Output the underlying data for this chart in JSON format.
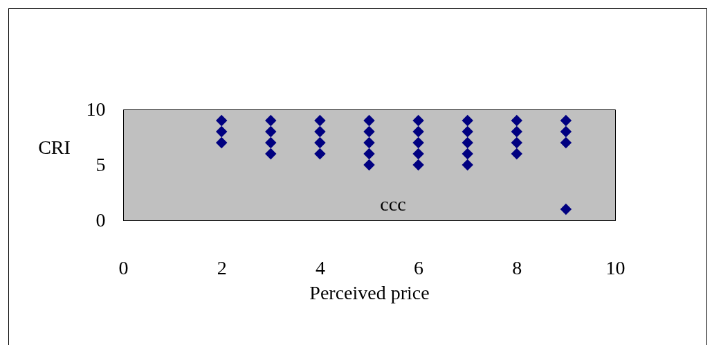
{
  "chart_data": {
    "type": "scatter",
    "xlabel": "Perceived price",
    "ylabel": "CRI",
    "marker": "diamond",
    "grid": false,
    "series": [
      {
        "color": "#000080",
        "x": [
          2,
          2,
          2,
          3,
          3,
          3,
          3,
          4,
          4,
          4,
          4,
          5,
          5,
          5,
          5,
          5,
          6,
          6,
          6,
          6,
          6,
          7,
          7,
          7,
          7,
          7,
          8,
          8,
          8,
          8,
          9,
          9,
          9,
          9
        ],
        "values": [
          7,
          8,
          9,
          6,
          7,
          8,
          9,
          6,
          7,
          8,
          9,
          5,
          6,
          7,
          8,
          9,
          5,
          6,
          7,
          8,
          9,
          5,
          6,
          7,
          8,
          9,
          6,
          7,
          8,
          9,
          1,
          7,
          8,
          9
        ]
      }
    ],
    "xlim": [
      0,
      10
    ],
    "xticks": [
      0,
      2,
      4,
      6,
      8,
      10
    ],
    "ylim": [
      0,
      10
    ],
    "yticks": [
      0,
      5,
      10
    ],
    "annotations": [
      "ccc"
    ]
  }
}
